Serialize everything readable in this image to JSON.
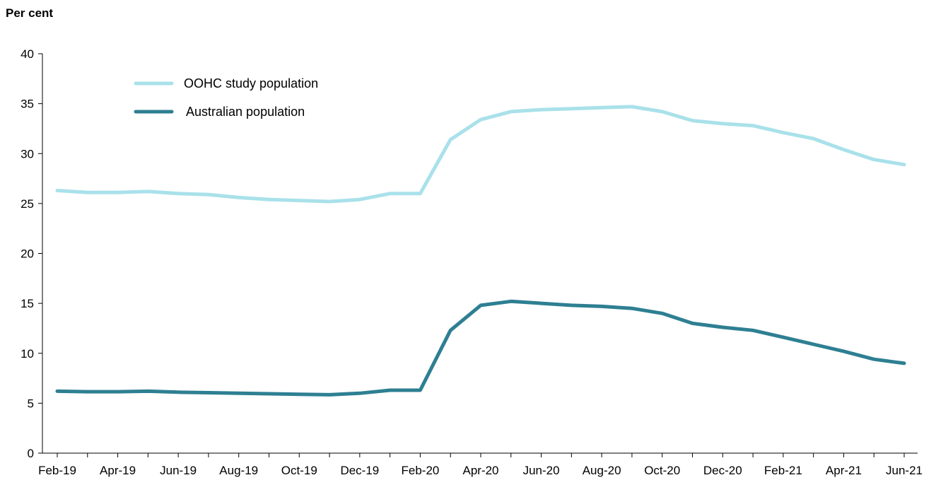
{
  "chart_data": {
    "type": "line",
    "ylabel": "Per cent",
    "xlabel": "",
    "ylim": [
      0,
      40
    ],
    "yticks": [
      0,
      5,
      10,
      15,
      20,
      25,
      30,
      35,
      40
    ],
    "x": [
      "Feb-19",
      "Mar-19",
      "Apr-19",
      "May-19",
      "Jun-19",
      "Jul-19",
      "Aug-19",
      "Sep-19",
      "Oct-19",
      "Nov-19",
      "Dec-19",
      "Jan-20",
      "Feb-20",
      "Mar-20",
      "Apr-20",
      "May-20",
      "Jun-20",
      "Jul-20",
      "Aug-20",
      "Sep-20",
      "Oct-20",
      "Nov-20",
      "Dec-20",
      "Jan-21",
      "Feb-21",
      "Mar-21",
      "Apr-21",
      "May-21",
      "Jun-21"
    ],
    "xtick_labels": [
      "Feb-19",
      "Apr-19",
      "Jun-19",
      "Aug-19",
      "Oct-19",
      "Dec-19",
      "Feb-20",
      "Apr-20",
      "Jun-20",
      "Aug-20",
      "Oct-20",
      "Dec-20",
      "Feb-21",
      "Apr-21",
      "Jun-21"
    ],
    "legend_position": "top-left",
    "grid": false,
    "series": [
      {
        "name": "OOHC study population",
        "color": "#a9e1ea",
        "values": [
          26.3,
          26.1,
          26.1,
          26.2,
          26.0,
          25.9,
          25.6,
          25.4,
          25.3,
          25.2,
          25.4,
          26.0,
          26.0,
          31.4,
          33.4,
          34.2,
          34.4,
          34.5,
          34.6,
          34.7,
          34.2,
          33.3,
          33.0,
          32.8,
          32.1,
          31.5,
          30.4,
          29.4,
          28.9
        ]
      },
      {
        "name": "Australian population",
        "color": "#2e7f92",
        "values": [
          6.2,
          6.15,
          6.15,
          6.2,
          6.1,
          6.05,
          6.0,
          5.95,
          5.9,
          5.85,
          6.0,
          6.3,
          6.3,
          12.3,
          14.8,
          15.2,
          15.0,
          14.8,
          14.7,
          14.5,
          14.0,
          13.0,
          12.6,
          12.3,
          11.6,
          10.9,
          10.2,
          9.4,
          9.0
        ]
      }
    ]
  }
}
